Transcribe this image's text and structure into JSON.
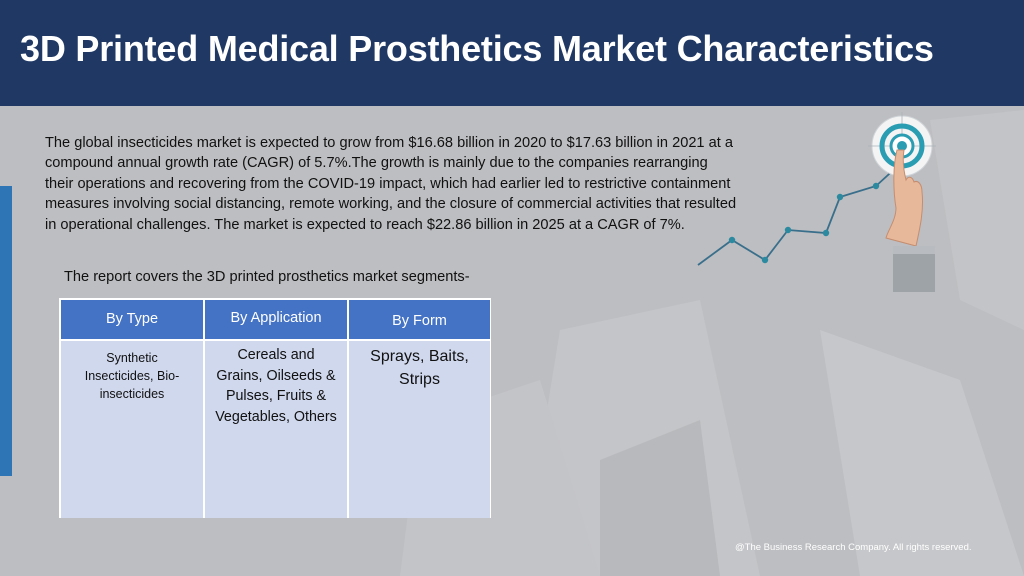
{
  "header": {
    "title": "3D Printed Medical Prosthetics Market Characteristics"
  },
  "body": {
    "paragraph": "The global insecticides market is expected to grow from $16.68 billion in 2020 to $17.63 billion in 2021 at a compound annual growth rate (CAGR) of 5.7%.The growth is mainly due to the companies rearranging their operations and recovering from the COVID-19 impact, which had earlier led to restrictive containment measures involving social distancing, remote working, and the closure of commercial activities that resulted in operational challenges. The market is expected to reach $22.86 billion in 2025 at a CAGR of 7%.",
    "segments_intro": "The report covers the 3D printed prosthetics market segments-"
  },
  "segments_table": {
    "headers": [
      "By Type",
      "By Application",
      "By Form"
    ],
    "cells": [
      "Synthetic Insecticides, Bio-insecticides",
      "Cereals and Grains, Oilseeds & Pulses, Fruits & Vegetables, Others",
      "Sprays, Baits, Strips"
    ]
  },
  "footer": {
    "copyright": "@The Business Research Company. All rights reserved."
  },
  "icons": {
    "illustration": "hand-touching-target-growth-chart-icon"
  },
  "colors": {
    "header_bg": "#1f3864",
    "table_header": "#4472c4",
    "table_cell": "#d0d8ee",
    "accent": "#2e75b6",
    "background": "#bdbec1"
  }
}
